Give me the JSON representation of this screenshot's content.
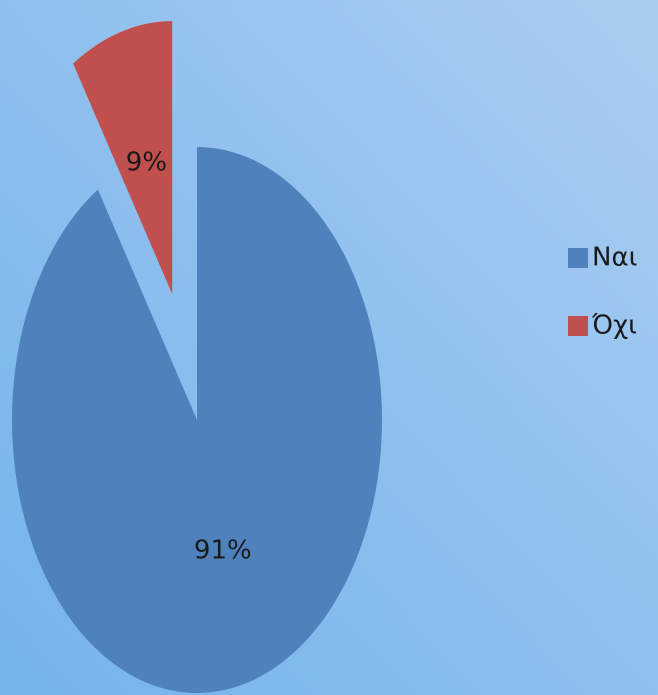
{
  "chart_data": {
    "type": "pie",
    "categories": [
      "Ναι",
      "Όχι"
    ],
    "values": [
      91,
      9
    ],
    "value_labels": [
      "91%",
      "9%"
    ],
    "colors": [
      "#4f81bd",
      "#c0504d"
    ],
    "legend": "right",
    "exploded": [
      false,
      true
    ]
  }
}
